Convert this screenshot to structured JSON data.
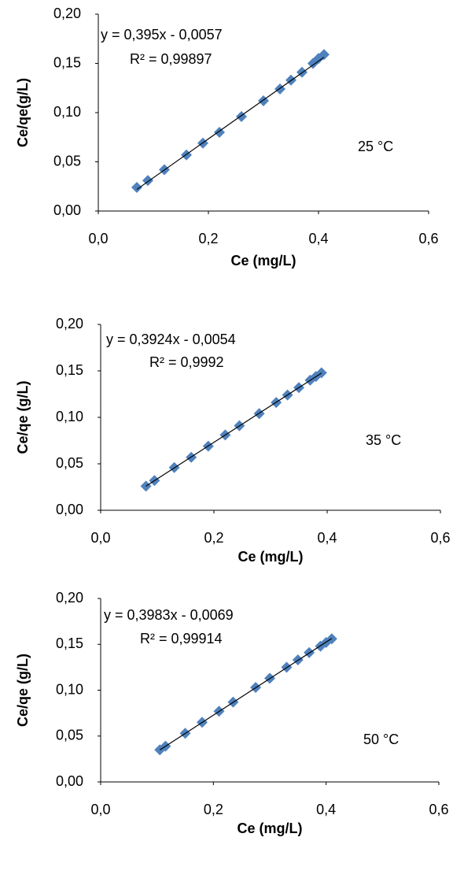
{
  "chart_data": [
    {
      "type": "scatter",
      "x_label": "Ce (mg/L)",
      "y_label": "Ce/qe(g/L)",
      "annotation": "25 °C",
      "trendline": {
        "slope": 0.395,
        "intercept": -0.0057,
        "label": "y = 0,395x - 0,0057",
        "r2_label": "R² = 0,99897",
        "color": "#000000"
      },
      "series": [
        {
          "color": "#4f81bd",
          "x": [
            0.07,
            0.09,
            0.12,
            0.16,
            0.19,
            0.22,
            0.26,
            0.3,
            0.33,
            0.35,
            0.37,
            0.39,
            0.4,
            0.41
          ],
          "values": [
            0.024,
            0.031,
            0.042,
            0.057,
            0.069,
            0.08,
            0.096,
            0.112,
            0.124,
            0.133,
            0.141,
            0.15,
            0.155,
            0.159
          ]
        }
      ],
      "xlim": [
        0,
        0.6
      ],
      "xticks": [
        {
          "value": 0,
          "label": "0,0"
        },
        {
          "value": 0.2,
          "label": "0,2"
        },
        {
          "value": 0.4,
          "label": "0,4"
        },
        {
          "value": 0.6,
          "label": "0,6"
        }
      ],
      "ylim": [
        0,
        0.2
      ],
      "yticks": [
        {
          "value": 0,
          "label": "0,00"
        },
        {
          "value": 0.05,
          "label": "0,05"
        },
        {
          "value": 0.1,
          "label": "0,10"
        },
        {
          "value": 0.15,
          "label": "0,15"
        },
        {
          "value": 0.2,
          "label": "0,20"
        }
      ],
      "grid": false
    },
    {
      "type": "scatter",
      "x_label": "Ce (mg/L)",
      "y_label": "Ce/qe (g/L)",
      "annotation": "35 °C",
      "trendline": {
        "slope": 0.3924,
        "intercept": -0.0054,
        "label": "y = 0,3924x - 0,0054",
        "r2_label": "R² = 0,9992",
        "color": "#000000"
      },
      "series": [
        {
          "color": "#4f81bd",
          "x": [
            0.08,
            0.095,
            0.13,
            0.16,
            0.19,
            0.22,
            0.245,
            0.28,
            0.31,
            0.33,
            0.35,
            0.37,
            0.38,
            0.39
          ],
          "values": [
            0.026,
            0.032,
            0.046,
            0.057,
            0.069,
            0.081,
            0.091,
            0.104,
            0.116,
            0.124,
            0.132,
            0.14,
            0.144,
            0.148
          ]
        }
      ],
      "xlim": [
        0,
        0.6
      ],
      "xticks": [
        {
          "value": 0,
          "label": "0,0"
        },
        {
          "value": 0.2,
          "label": "0,2"
        },
        {
          "value": 0.4,
          "label": "0,4"
        },
        {
          "value": 0.6,
          "label": "0,6"
        }
      ],
      "ylim": [
        0,
        0.2
      ],
      "yticks": [
        {
          "value": 0,
          "label": "0,00"
        },
        {
          "value": 0.05,
          "label": "0,05"
        },
        {
          "value": 0.1,
          "label": "0,10"
        },
        {
          "value": 0.15,
          "label": "0,15"
        },
        {
          "value": 0.2,
          "label": "0,20"
        }
      ],
      "grid": false
    },
    {
      "type": "scatter",
      "x_label": "Ce (mg/L)",
      "y_label": "Ce/qe (g/L)",
      "annotation": "50 °C",
      "trendline": {
        "slope": 0.3983,
        "intercept": -0.0069,
        "label": "y = 0,3983x - 0,0069",
        "r2_label": "R² = 0,99914",
        "color": "#000000"
      },
      "series": [
        {
          "color": "#4f81bd",
          "x": [
            0.105,
            0.115,
            0.15,
            0.18,
            0.21,
            0.235,
            0.275,
            0.3,
            0.33,
            0.35,
            0.37,
            0.39,
            0.4,
            0.41
          ],
          "values": [
            0.035,
            0.039,
            0.053,
            0.065,
            0.077,
            0.087,
            0.103,
            0.113,
            0.125,
            0.133,
            0.141,
            0.148,
            0.152,
            0.156
          ]
        }
      ],
      "xlim": [
        0,
        0.6
      ],
      "xticks": [
        {
          "value": 0,
          "label": "0,0"
        },
        {
          "value": 0.2,
          "label": "0,2"
        },
        {
          "value": 0.4,
          "label": "0,4"
        },
        {
          "value": 0.6,
          "label": "0,6"
        }
      ],
      "ylim": [
        0,
        0.2
      ],
      "yticks": [
        {
          "value": 0,
          "label": "0,00"
        },
        {
          "value": 0.05,
          "label": "0,05"
        },
        {
          "value": 0.1,
          "label": "0,10"
        },
        {
          "value": 0.15,
          "label": "0,15"
        },
        {
          "value": 0.2,
          "label": "0,20"
        }
      ],
      "grid": false
    }
  ]
}
